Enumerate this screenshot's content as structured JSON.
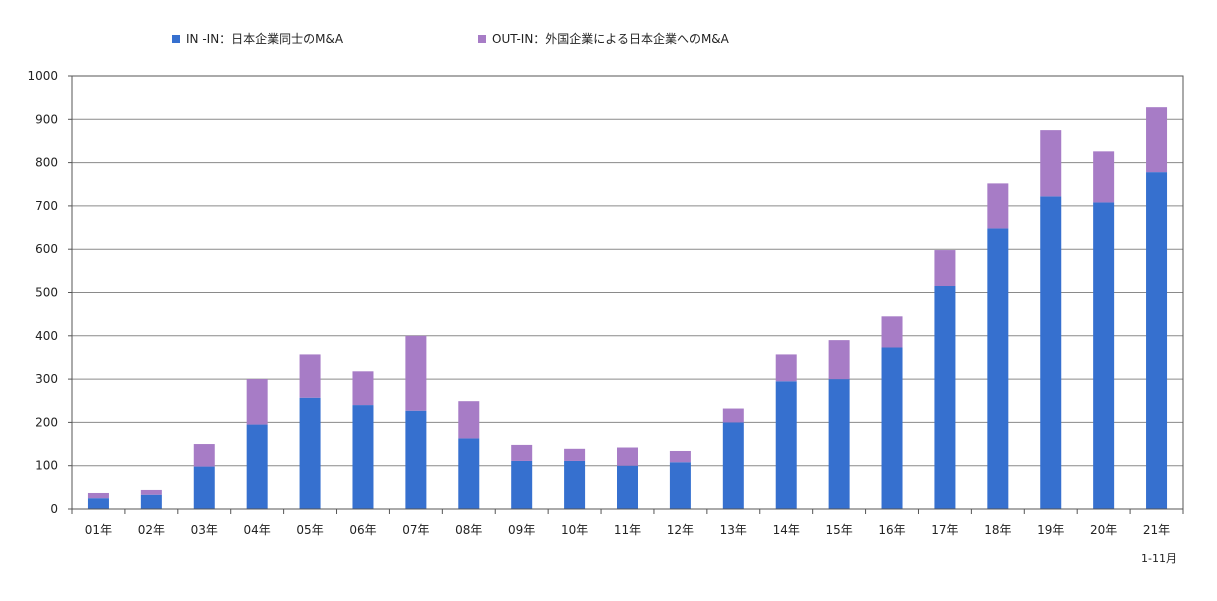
{
  "chart_data": {
    "type": "bar",
    "stacked": true,
    "categories": [
      "01年",
      "02年",
      "03年",
      "04年",
      "05年",
      "06年",
      "07年",
      "08年",
      "09年",
      "10年",
      "11年",
      "12年",
      "13年",
      "14年",
      "15年",
      "16年",
      "17年",
      "18年",
      "19年",
      "20年",
      "21年"
    ],
    "series": [
      {
        "name": "IN -IN：日本企業同士のM&A",
        "color": "#3670cf",
        "values": [
          25,
          33,
          98,
          195,
          257,
          240,
          227,
          163,
          111,
          111,
          100,
          108,
          200,
          295,
          300,
          373,
          515,
          648,
          722,
          708,
          778
        ]
      },
      {
        "name": "OUT-IN：外国企業による日本企業へのM&A",
        "color": "#a77cc6",
        "values": [
          12,
          11,
          52,
          105,
          100,
          78,
          173,
          86,
          37,
          28,
          42,
          26,
          32,
          62,
          90,
          72,
          83,
          104,
          153,
          118,
          150
        ]
      }
    ],
    "ylim": [
      0,
      1000
    ],
    "yticks": [
      0,
      100,
      200,
      300,
      400,
      500,
      600,
      700,
      800,
      900,
      1000
    ],
    "ytick_labels": [
      "0",
      "100",
      "200",
      "300",
      "400",
      "500",
      "600",
      "700",
      "800",
      "900",
      "1000"
    ],
    "grid": true,
    "legend_position": "top",
    "annotation": "1-11月"
  }
}
